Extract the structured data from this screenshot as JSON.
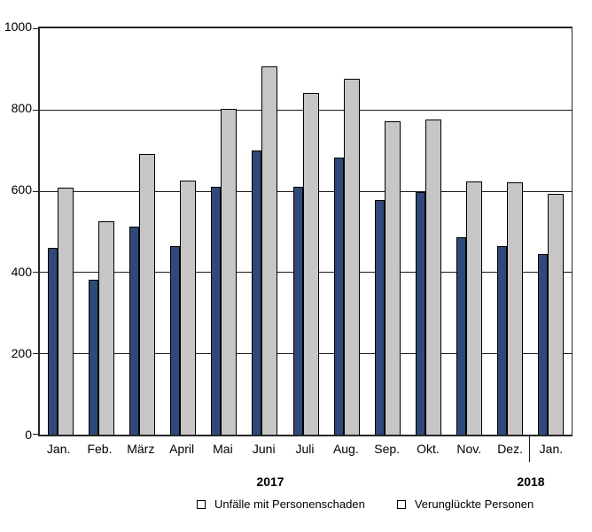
{
  "chart_data": {
    "type": "bar",
    "title": "",
    "xlabel": "",
    "ylabel": "",
    "categories": [
      "Jan.",
      "Feb.",
      "März",
      "April",
      "Mai",
      "Juni",
      "Juli",
      "Aug.",
      "Sep.",
      "Okt.",
      "Nov.",
      "Dez.",
      "Jan."
    ],
    "series": [
      {
        "name": "Unfälle mit Personenschaden",
        "color": "#2F4A78",
        "values": [
          460,
          382,
          512,
          463,
          610,
          700,
          609,
          681,
          577,
          596,
          486,
          465,
          444
        ]
      },
      {
        "name": "Verunglückte Personen",
        "color": "#C6C6C6",
        "values": [
          607,
          524,
          691,
          625,
          801,
          906,
          842,
          876,
          772,
          775,
          623,
          622,
          593
        ]
      }
    ],
    "ylim": [
      0,
      1000
    ],
    "yticks": [
      0,
      200,
      400,
      600,
      800,
      1000
    ],
    "grid": "horizontal",
    "gridline_color": "#1a1a1a",
    "legend_position": "bottom",
    "year_labels": [
      "2017",
      "2018"
    ],
    "year_separator_after_category_index": 11
  }
}
